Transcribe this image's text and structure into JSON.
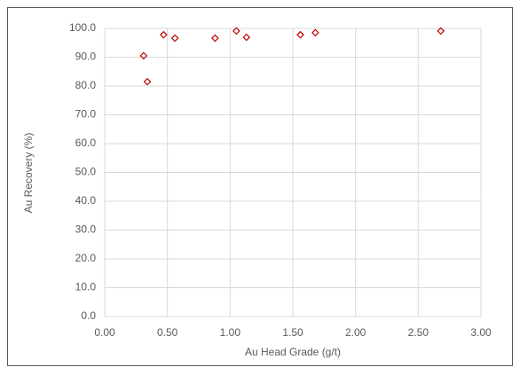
{
  "chart_data": {
    "type": "scatter",
    "x_label": "Au Head Grade (g/t)",
    "y_label": "Au Recovery (%)",
    "x": [
      0.31,
      0.34,
      0.47,
      0.56,
      0.88,
      1.05,
      1.13,
      1.56,
      1.68,
      2.68
    ],
    "series": [
      {
        "color": "#c00000",
        "values": [
          90.5,
          81.5,
          97.8,
          96.6,
          96.6,
          99.1,
          96.9,
          97.8,
          98.5,
          99.1
        ]
      }
    ],
    "xlim": [
      0,
      3
    ],
    "ylim": [
      0,
      100
    ],
    "xticks": [
      {
        "value": 0,
        "label": "0.00"
      },
      {
        "value": 0.5,
        "label": "0.50"
      },
      {
        "value": 1,
        "label": "1.00"
      },
      {
        "value": 1.5,
        "label": "1.50"
      },
      {
        "value": 2,
        "label": "2.00"
      },
      {
        "value": 2.5,
        "label": "2.50"
      },
      {
        "value": 3,
        "label": "3.00"
      }
    ],
    "yticks": [
      {
        "value": 0,
        "label": "0.0"
      },
      {
        "value": 10,
        "label": "10.0"
      },
      {
        "value": 20,
        "label": "20.0"
      },
      {
        "value": 30,
        "label": "30.0"
      },
      {
        "value": 40,
        "label": "40.0"
      },
      {
        "value": 50,
        "label": "50.0"
      },
      {
        "value": 60,
        "label": "60.0"
      },
      {
        "value": 70,
        "label": "70.0"
      },
      {
        "value": 80,
        "label": "80.0"
      },
      {
        "value": 90,
        "label": "90.0"
      },
      {
        "value": 100,
        "label": "100.0"
      }
    ],
    "grid": true
  }
}
